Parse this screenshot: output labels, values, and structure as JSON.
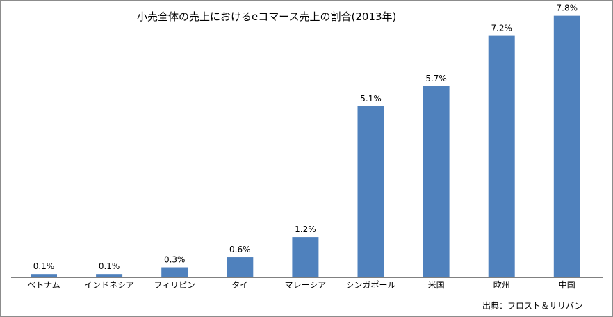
{
  "chart_data": {
    "type": "bar",
    "title": "小売全体の売上におけるeコマース売上の割合(2013年)",
    "categories": [
      "ベトナム",
      "インドネシア",
      "フィリピン",
      "タイ",
      "マレーシア",
      "シンガポール",
      "米国",
      "欧州",
      "中国"
    ],
    "values": [
      0.1,
      0.1,
      0.3,
      0.6,
      1.2,
      5.1,
      5.7,
      7.2,
      7.8
    ],
    "data_labels": [
      "0.1%",
      "0.1%",
      "0.3%",
      "0.6%",
      "1.2%",
      "5.1%",
      "5.7%",
      "7.2%",
      "7.8%"
    ],
    "bar_color": "#4f81bd",
    "ylim": [
      0,
      8
    ],
    "grid": false,
    "legend": "none",
    "xlabel": "",
    "ylabel": ""
  },
  "source_note": "出典：フロスト＆サリバン"
}
